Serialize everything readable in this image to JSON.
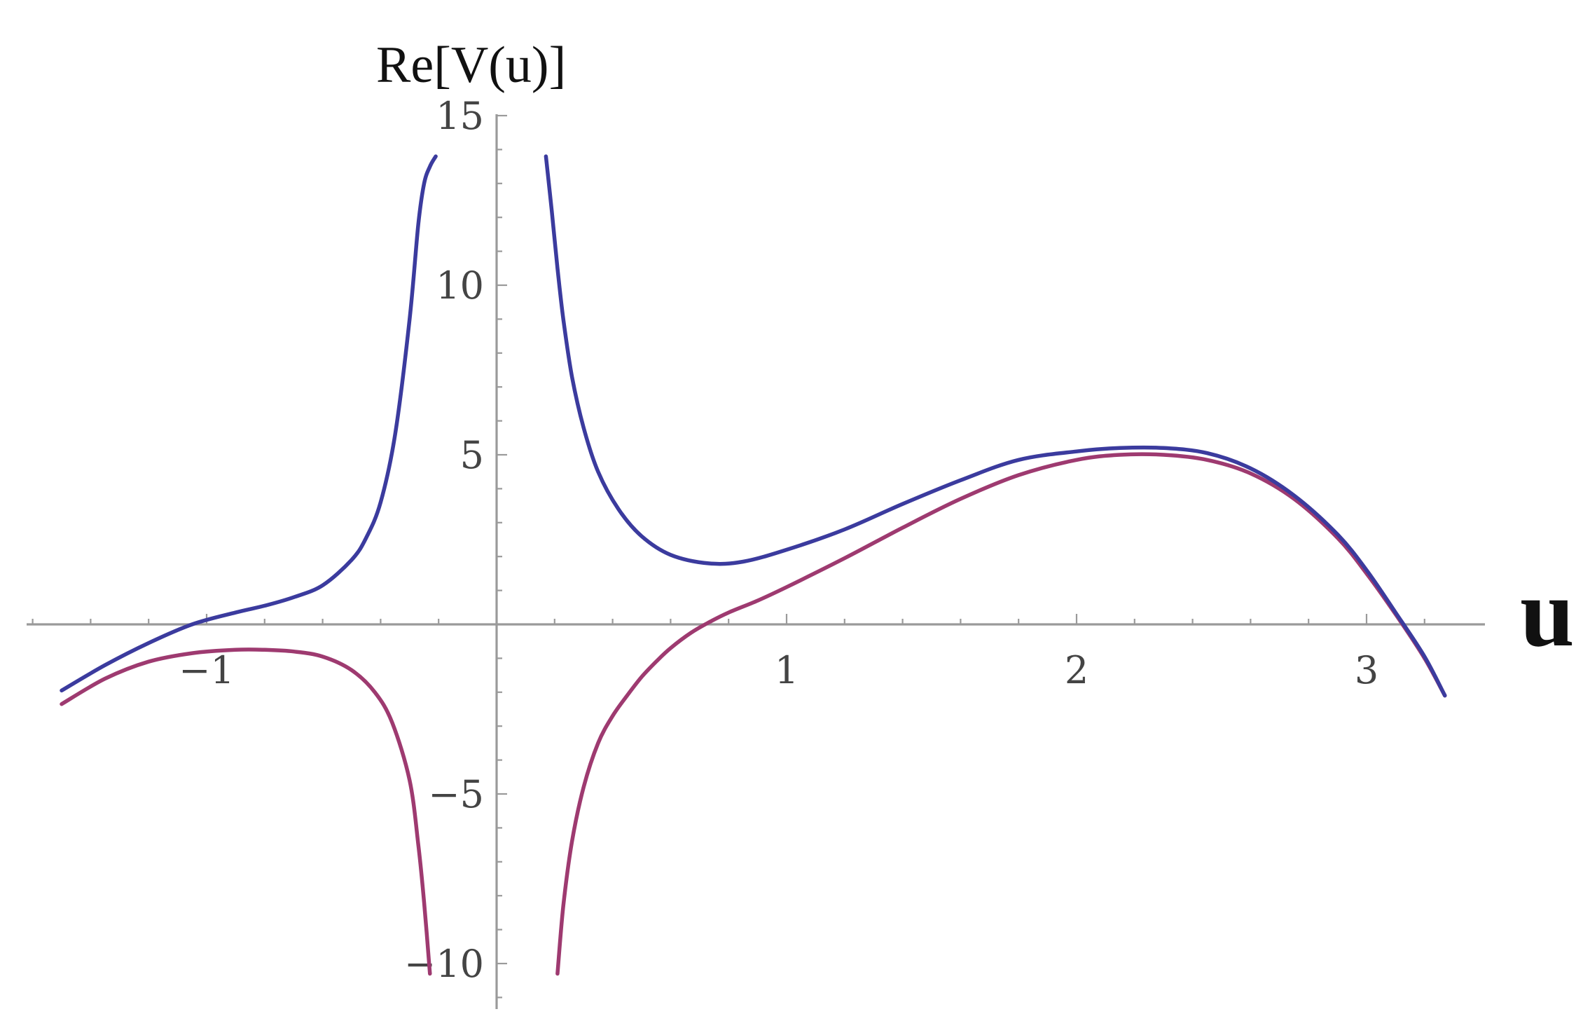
{
  "chart_data": {
    "type": "line",
    "ylabel": "Re[V(u)]",
    "xlabel": "u",
    "xlim": [
      -1.61,
      3.3
    ],
    "ylim": [
      -11.1,
      15.1
    ],
    "xticks": [
      -1,
      1,
      2,
      3
    ],
    "xtick_labels": [
      "−1",
      "1",
      "2",
      "3"
    ],
    "yticks": [
      -10,
      -5,
      5,
      10,
      15
    ],
    "ytick_labels": [
      "−10",
      "−5",
      "5",
      "10",
      "15"
    ],
    "grid": false,
    "series": [
      {
        "color": "#3b3b9e",
        "branches": [
          {
            "x": [
              -1.5,
              -1.35,
              -1.2,
              -1.05,
              -0.9,
              -0.8,
              -0.7,
              -0.6,
              -0.5,
              -0.45,
              -0.4,
              -0.35,
              -0.3,
              -0.27,
              -0.25,
              -0.23,
              -0.21
            ],
            "y": [
              -1.95,
              -1.2,
              -0.55,
              0.0,
              0.35,
              0.55,
              0.8,
              1.15,
              1.9,
              2.55,
              3.6,
              5.6,
              9.0,
              11.8,
              13.0,
              13.5,
              13.8
            ]
          },
          {
            "x": [
              0.17,
              0.19,
              0.21,
              0.23,
              0.26,
              0.3,
              0.35,
              0.42,
              0.5,
              0.6,
              0.73,
              0.85,
              1.0,
              1.2,
              1.4,
              1.6,
              1.8,
              2.0,
              2.15,
              2.3,
              2.45,
              2.6,
              2.75,
              2.9,
              3.0,
              3.1,
              3.2,
              3.27
            ],
            "y": [
              13.8,
              12.2,
              10.5,
              9.0,
              7.3,
              5.8,
              4.5,
              3.4,
              2.6,
              2.05,
              1.8,
              1.85,
              2.2,
              2.8,
              3.55,
              4.25,
              4.85,
              5.1,
              5.2,
              5.2,
              5.05,
              4.6,
              3.8,
              2.65,
              1.6,
              0.35,
              -0.95,
              -2.1
            ]
          }
        ]
      },
      {
        "color": "#9e3a70",
        "branches": [
          {
            "x": [
              -1.5,
              -1.35,
              -1.2,
              -1.05,
              -0.9,
              -0.8,
              -0.7,
              -0.6,
              -0.5,
              -0.42,
              -0.36,
              -0.3,
              -0.27,
              -0.25,
              -0.23
            ],
            "y": [
              -2.35,
              -1.6,
              -1.1,
              -0.85,
              -0.75,
              -0.75,
              -0.8,
              -0.95,
              -1.35,
              -2.0,
              -2.9,
              -4.6,
              -6.5,
              -8.2,
              -10.3
            ]
          },
          {
            "x": [
              0.21,
              0.23,
              0.26,
              0.3,
              0.35,
              0.4,
              0.45,
              0.5,
              0.55,
              0.6,
              0.67,
              0.73,
              0.8,
              0.9,
              1.0,
              1.2,
              1.4,
              1.6,
              1.8,
              2.0,
              2.15,
              2.3,
              2.45,
              2.6,
              2.75,
              2.9,
              3.0,
              3.1,
              3.2,
              3.27
            ],
            "y": [
              -10.3,
              -8.3,
              -6.4,
              -4.8,
              -3.5,
              -2.7,
              -2.1,
              -1.55,
              -1.1,
              -0.7,
              -0.25,
              0.05,
              0.35,
              0.7,
              1.1,
              1.95,
              2.85,
              3.7,
              4.4,
              4.85,
              5.0,
              5.0,
              4.85,
              4.45,
              3.7,
              2.55,
              1.5,
              0.3,
              -1.0,
              -2.1
            ]
          }
        ]
      }
    ]
  }
}
